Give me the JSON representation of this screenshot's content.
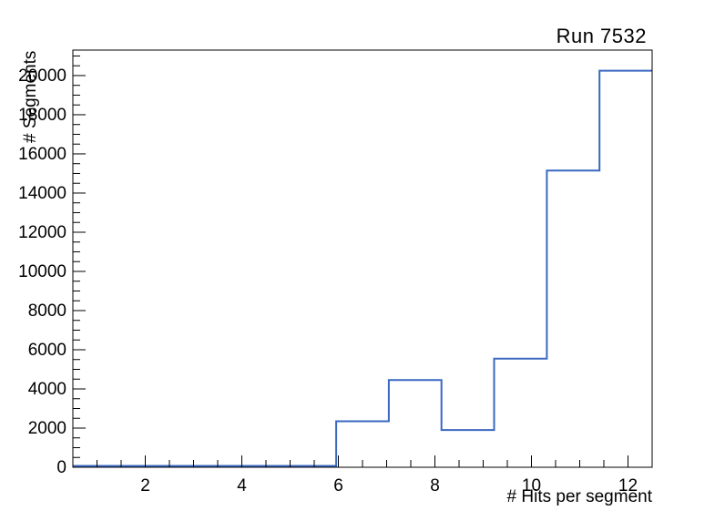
{
  "title": "Run 7532",
  "axes": {
    "x": {
      "label": "# Hits per segment",
      "min": 0.5,
      "max": 12.5,
      "major_ticks": [
        2,
        4,
        6,
        8,
        10,
        12
      ],
      "minor_step": 0.5
    },
    "y": {
      "label": "# Segments",
      "min": 0,
      "max": 21300,
      "major_ticks": [
        0,
        2000,
        4000,
        6000,
        8000,
        10000,
        12000,
        14000,
        16000,
        18000,
        20000
      ],
      "minor_step": 500
    }
  },
  "chart_data": {
    "type": "bar",
    "style": "step-outline-histogram",
    "title": "Run 7532",
    "xlabel": "# Hits per segment",
    "ylabel": "# Segments",
    "xlim": [
      0.5,
      12.5
    ],
    "ylim": [
      0,
      21300
    ],
    "bin_edges": [
      0.5,
      1.5909,
      2.6818,
      3.7727,
      4.8636,
      5.9545,
      7.0455,
      8.1364,
      9.2273,
      10.3182,
      11.4091,
      12.5
    ],
    "values": [
      0,
      0,
      0,
      0,
      0,
      2350,
      4450,
      1900,
      5550,
      15150,
      20250
    ],
    "grid": false,
    "legend": "none",
    "line_color": "#3a68c0"
  },
  "colors": {
    "hist_line": "#3a68c0",
    "frame_line": "#000000",
    "background": "#ffffff",
    "text": "#000000"
  }
}
